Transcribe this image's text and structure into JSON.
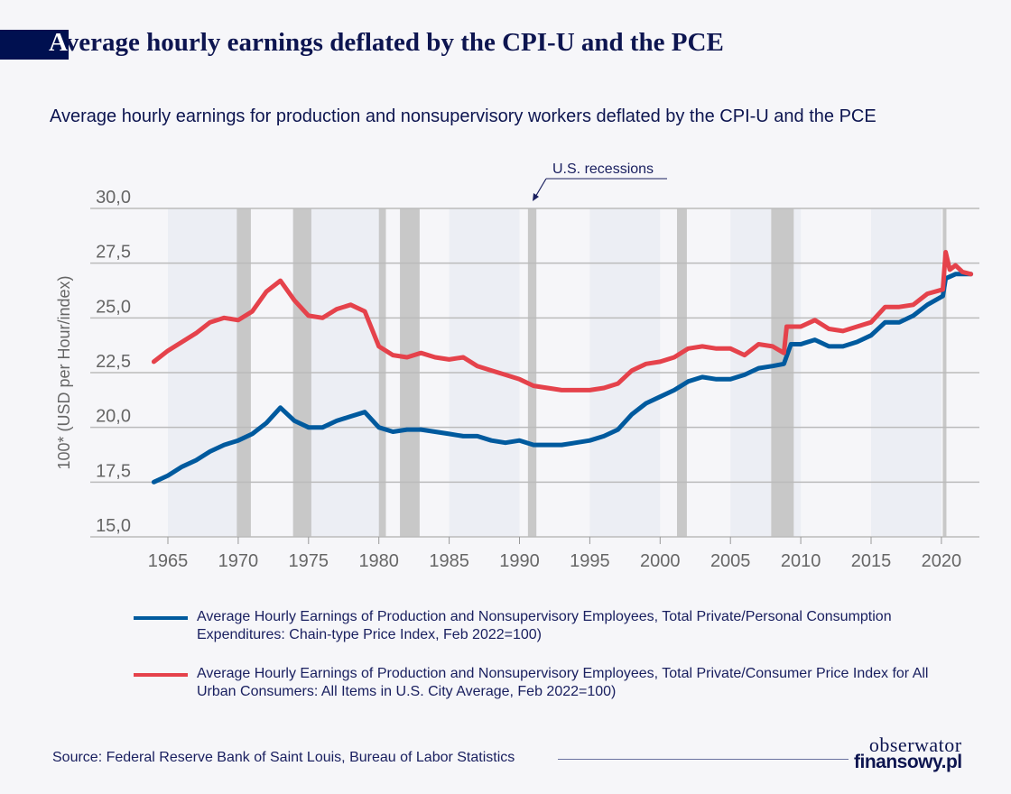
{
  "header": {
    "title_first_letter": "A",
    "title_rest": "verage hourly earnings deflated by the CPI-U and the PCE"
  },
  "subtitle": "Average hourly earnings for production and nonsupervisory workers deflated by the CPI-U and the PCE",
  "source": "Source: Federal Reserve Bank of Saint Louis, Bureau of Labor Statistics",
  "logo": {
    "line1": "obserwator",
    "line2": "finansowy.pl"
  },
  "chart_data": {
    "type": "line",
    "title": "Average hourly earnings for production and nonsupervisory workers deflated by the CPI-U and the PCE",
    "ylabel": "100* (USD per Hour/index)",
    "xlabel": "",
    "ylim": [
      15,
      30
    ],
    "xlim": [
      1962.8,
      2023.5
    ],
    "yticks": [
      "15,0",
      "17,5",
      "20,0",
      "22,5",
      "25,0",
      "27,5",
      "30,0"
    ],
    "ytick_values": [
      15,
      17.5,
      20,
      22.5,
      25,
      27.5,
      30
    ],
    "xticks": [
      "1965",
      "1970",
      "1975",
      "1980",
      "1985",
      "1990",
      "1995",
      "2000",
      "2005",
      "2010",
      "2015",
      "2020"
    ],
    "grid": true,
    "legend_position": "bottom",
    "annotation": "U.S. recessions",
    "recessions": [
      [
        1969.9,
        1970.9
      ],
      [
        1973.9,
        1975.2
      ],
      [
        1980.0,
        1980.5
      ],
      [
        1981.5,
        1982.9
      ],
      [
        1990.6,
        1991.2
      ],
      [
        2001.2,
        2001.9
      ],
      [
        2007.9,
        2009.5
      ],
      [
        2020.1,
        2020.35
      ]
    ],
    "colors": {
      "pce": "#005a9e",
      "cpi": "#e5424b",
      "recession": "#c8c8c8",
      "band": "#eceef4"
    },
    "series": [
      {
        "name": "Average Hourly Earnings of Production and Nonsupervisory Employees, Total Private/Personal Consumption Expenditures: Chain-type Price Index, Feb 2022=100)",
        "color": "#005a9e",
        "x": [
          1964,
          1965,
          1966,
          1967,
          1968,
          1969,
          1970,
          1971,
          1972,
          1973,
          1974,
          1975,
          1976,
          1977,
          1978,
          1979,
          1980,
          1981,
          1982,
          1983,
          1984,
          1985,
          1986,
          1987,
          1988,
          1989,
          1990,
          1991,
          1992,
          1993,
          1994,
          1995,
          1996,
          1997,
          1998,
          1999,
          2000,
          2001,
          2002,
          2003,
          2004,
          2005,
          2006,
          2007,
          2008,
          2008.8,
          2009.3,
          2010,
          2011,
          2012,
          2013,
          2014,
          2015,
          2016,
          2017,
          2018,
          2019,
          2020.1,
          2020.3,
          2021,
          2022.1
        ],
        "values": [
          17.5,
          17.8,
          18.2,
          18.5,
          18.9,
          19.2,
          19.4,
          19.7,
          20.2,
          20.9,
          20.3,
          20.0,
          20.0,
          20.3,
          20.5,
          20.7,
          20.0,
          19.8,
          19.9,
          19.9,
          19.8,
          19.7,
          19.6,
          19.6,
          19.4,
          19.3,
          19.4,
          19.2,
          19.2,
          19.2,
          19.3,
          19.4,
          19.6,
          19.9,
          20.6,
          21.1,
          21.4,
          21.7,
          22.1,
          22.3,
          22.2,
          22.2,
          22.4,
          22.7,
          22.8,
          22.9,
          23.8,
          23.8,
          24.0,
          23.7,
          23.7,
          23.9,
          24.2,
          24.8,
          24.8,
          25.1,
          25.6,
          26.0,
          26.8,
          27.0,
          27.0
        ]
      },
      {
        "name": "Average Hourly Earnings of Production and Nonsupervisory Employees, Total Private/Consumer Price Index for All Urban Consumers: All Items in U.S. City Average, Feb 2022=100)",
        "color": "#e5424b",
        "x": [
          1964,
          1965,
          1966,
          1967,
          1968,
          1969,
          1970,
          1971,
          1972,
          1973,
          1974,
          1975,
          1976,
          1977,
          1978,
          1979,
          1980,
          1981,
          1982,
          1983,
          1984,
          1985,
          1986,
          1987,
          1988,
          1989,
          1990,
          1991,
          1992,
          1993,
          1994,
          1995,
          1996,
          1997,
          1998,
          1999,
          2000,
          2001,
          2002,
          2003,
          2004,
          2005,
          2006,
          2007,
          2008,
          2008.8,
          2009,
          2010,
          2011,
          2012,
          2013,
          2014,
          2015,
          2016,
          2017,
          2018,
          2019,
          2020.1,
          2020.3,
          2020.6,
          2021,
          2021.5,
          2022.1
        ],
        "values": [
          23.0,
          23.5,
          23.9,
          24.3,
          24.8,
          25.0,
          24.9,
          25.3,
          26.2,
          26.7,
          25.8,
          25.1,
          25.0,
          25.4,
          25.6,
          25.3,
          23.7,
          23.3,
          23.2,
          23.4,
          23.2,
          23.1,
          23.2,
          22.8,
          22.6,
          22.4,
          22.2,
          21.9,
          21.8,
          21.7,
          21.7,
          21.7,
          21.8,
          22.0,
          22.6,
          22.9,
          23.0,
          23.2,
          23.6,
          23.7,
          23.6,
          23.6,
          23.3,
          23.8,
          23.7,
          23.4,
          24.6,
          24.6,
          24.9,
          24.5,
          24.4,
          24.6,
          24.8,
          25.5,
          25.5,
          25.6,
          26.1,
          26.3,
          28.0,
          27.2,
          27.4,
          27.1,
          27.0
        ]
      }
    ]
  }
}
